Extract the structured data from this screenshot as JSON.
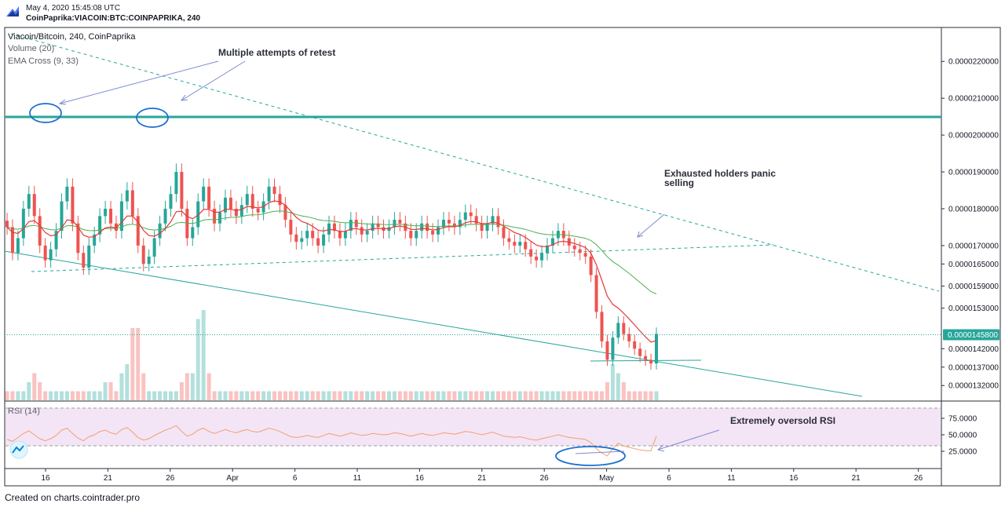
{
  "header": {
    "date": "May 4, 2020 15:45:08 UTC",
    "symbol": "CoinPaprika:VIACOIN:BTC:COINPAPRIKA, 240"
  },
  "legend": {
    "main": "Viacoin/Bitcoin, 240, CoinPaprika",
    "volume": "Volume (20)",
    "ema": "EMA Cross (9, 33)",
    "rsi": "RSI (14)"
  },
  "annotations": {
    "retest": "Multiple attempts of retest",
    "panic_line1": "Exhausted holders panic",
    "panic_line2": "selling",
    "oversold": "Extremely oversold RSI"
  },
  "footer": "Created on charts.cointrader.pro",
  "colors": {
    "up": "#26a69a",
    "down": "#ef5350",
    "ema_fast": "#e53935",
    "ema_slow": "#4caf50",
    "trend": "#26a69a",
    "rsi_line": "#f0a070",
    "rsi_band": "#f3e5f5",
    "annotation": "#7e8ad1",
    "price_label_bg": "#26a69a"
  },
  "chart_data": {
    "type": "candlestick",
    "title": "Viacoin/Bitcoin, 240, CoinPaprika",
    "x_ticks": [
      "16",
      "21",
      "26",
      "Apr",
      "6",
      "11",
      "16",
      "21",
      "26",
      "May",
      "6",
      "11",
      "16",
      "21",
      "26"
    ],
    "y_ticks": [
      "0.0000220000",
      "0.0000210000",
      "0.0000200000",
      "0.0000190000",
      "0.0000180000",
      "0.0000170000",
      "0.0000165000",
      "0.0000159000",
      "0.0000153000",
      "0.0000142000",
      "0.0000137000",
      "0.0000132000"
    ],
    "y_range": [
      1.28e-05,
      2.29e-05
    ],
    "last_price": "0.0000145800",
    "last_price_value": 1.458e-05,
    "resistance_level": 2.02e-05,
    "close_series": [
      175,
      168,
      172,
      180,
      184,
      178,
      170,
      166,
      169,
      174,
      182,
      186,
      176,
      168,
      164,
      170,
      173,
      178,
      180,
      176,
      174,
      182,
      185,
      178,
      170,
      165,
      167,
      172,
      176,
      180,
      184,
      190,
      180,
      172,
      175,
      182,
      186,
      180,
      176,
      179,
      183,
      180,
      178,
      181,
      184,
      180,
      179,
      182,
      186,
      184,
      181,
      177,
      173,
      171,
      172,
      174,
      172,
      170,
      173,
      176,
      174,
      172,
      174,
      177,
      175,
      173,
      174,
      176,
      175,
      174,
      175,
      177,
      176,
      174,
      172,
      174,
      176,
      174,
      173,
      175,
      177,
      176,
      175,
      177,
      179,
      178,
      176,
      174,
      176,
      178,
      175,
      172,
      171,
      170,
      171,
      169,
      167,
      166,
      168,
      170,
      172,
      174,
      172,
      170,
      169,
      168,
      167,
      162,
      152,
      144,
      139,
      145,
      149,
      146,
      144,
      142,
      140,
      139,
      138,
      146
    ],
    "volume_series": [
      1,
      1,
      1,
      1,
      2,
      3,
      2,
      1,
      1,
      1,
      1,
      1,
      1,
      1,
      1,
      1,
      1,
      1,
      2,
      2,
      1,
      3,
      4,
      8,
      8,
      3,
      1,
      1,
      1,
      1,
      1,
      1,
      2,
      3,
      3,
      9,
      10,
      3,
      1,
      1,
      1,
      1,
      1,
      1,
      1,
      1,
      1,
      1,
      1,
      1,
      1,
      1,
      1,
      1,
      1,
      1,
      1,
      1,
      1,
      1,
      1,
      1,
      1,
      1,
      1,
      1,
      1,
      1,
      1,
      1,
      1,
      1,
      1,
      1,
      1,
      1,
      1,
      1,
      1,
      1,
      1,
      1,
      1,
      1,
      1,
      1,
      1,
      1,
      1,
      1,
      1,
      1,
      1,
      1,
      1,
      1,
      1,
      1,
      1,
      1,
      1,
      1,
      1,
      1,
      1,
      1,
      1,
      1,
      1,
      1,
      2,
      4,
      3,
      2,
      1,
      1,
      1,
      1,
      1,
      1
    ],
    "rsi_ticks": [
      "75.0000",
      "50.0000",
      "25.0000"
    ],
    "rsi_range": [
      0,
      100
    ],
    "rsi_bands": [
      30,
      70
    ],
    "rsi_series": [
      43,
      40,
      46,
      52,
      56,
      50,
      44,
      41,
      44,
      49,
      57,
      60,
      52,
      45,
      41,
      47,
      50,
      55,
      57,
      53,
      51,
      58,
      61,
      54,
      46,
      42,
      44,
      49,
      53,
      57,
      60,
      64,
      55,
      48,
      51,
      57,
      60,
      55,
      52,
      55,
      58,
      55,
      53,
      56,
      58,
      55,
      54,
      57,
      60,
      58,
      55,
      51,
      47,
      46,
      47,
      49,
      47,
      46,
      49,
      52,
      50,
      48,
      50,
      53,
      51,
      49,
      50,
      52,
      51,
      50,
      51,
      53,
      52,
      50,
      48,
      50,
      52,
      50,
      49,
      51,
      53,
      52,
      51,
      53,
      55,
      54,
      52,
      50,
      52,
      54,
      51,
      48,
      47,
      46,
      47,
      45,
      43,
      42,
      44,
      46,
      48,
      50,
      48,
      46,
      45,
      44,
      43,
      38,
      29,
      22,
      18,
      29,
      37,
      33,
      31,
      29,
      27,
      26,
      26,
      48
    ]
  }
}
